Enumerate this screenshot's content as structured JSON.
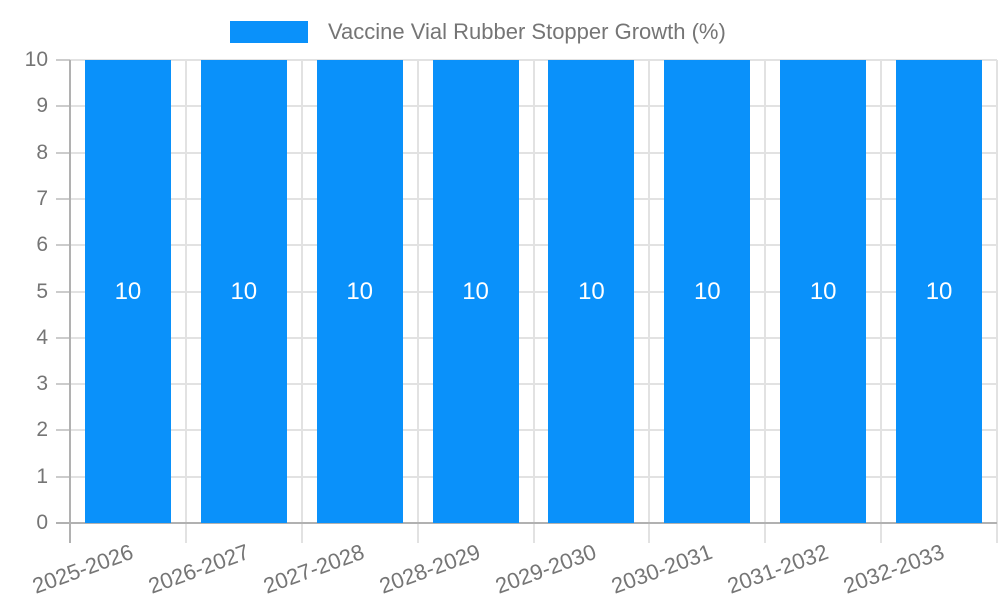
{
  "legend": {
    "label": "Vaccine Vial Rubber Stopper Growth (%)"
  },
  "chart_data": {
    "type": "bar",
    "title": "Vaccine Vial Rubber Stopper Growth (%)",
    "categories": [
      "2025-2026",
      "2026-2027",
      "2027-2028",
      "2028-2029",
      "2029-2030",
      "2030-2031",
      "2031-2032",
      "2032-2033"
    ],
    "series": [
      {
        "name": "Vaccine Vial Rubber Stopper Growth (%)",
        "values": [
          10,
          10,
          10,
          10,
          10,
          10,
          10,
          10
        ]
      }
    ],
    "bar_value_labels": [
      "10",
      "10",
      "10",
      "10",
      "10",
      "10",
      "10",
      "10"
    ],
    "xlabel": "",
    "ylabel": "",
    "ylim": [
      0,
      10
    ],
    "yticks": [
      0,
      1,
      2,
      3,
      4,
      5,
      6,
      7,
      8,
      9,
      10
    ],
    "grid": true,
    "legend_position": "top",
    "colors": {
      "bar": "#0a91fa",
      "value_label": "#ffffff",
      "text": "#757575",
      "gridline": "#e2e2e2",
      "y_tick": "#cccccc",
      "axis": "#b1b1b1"
    }
  }
}
